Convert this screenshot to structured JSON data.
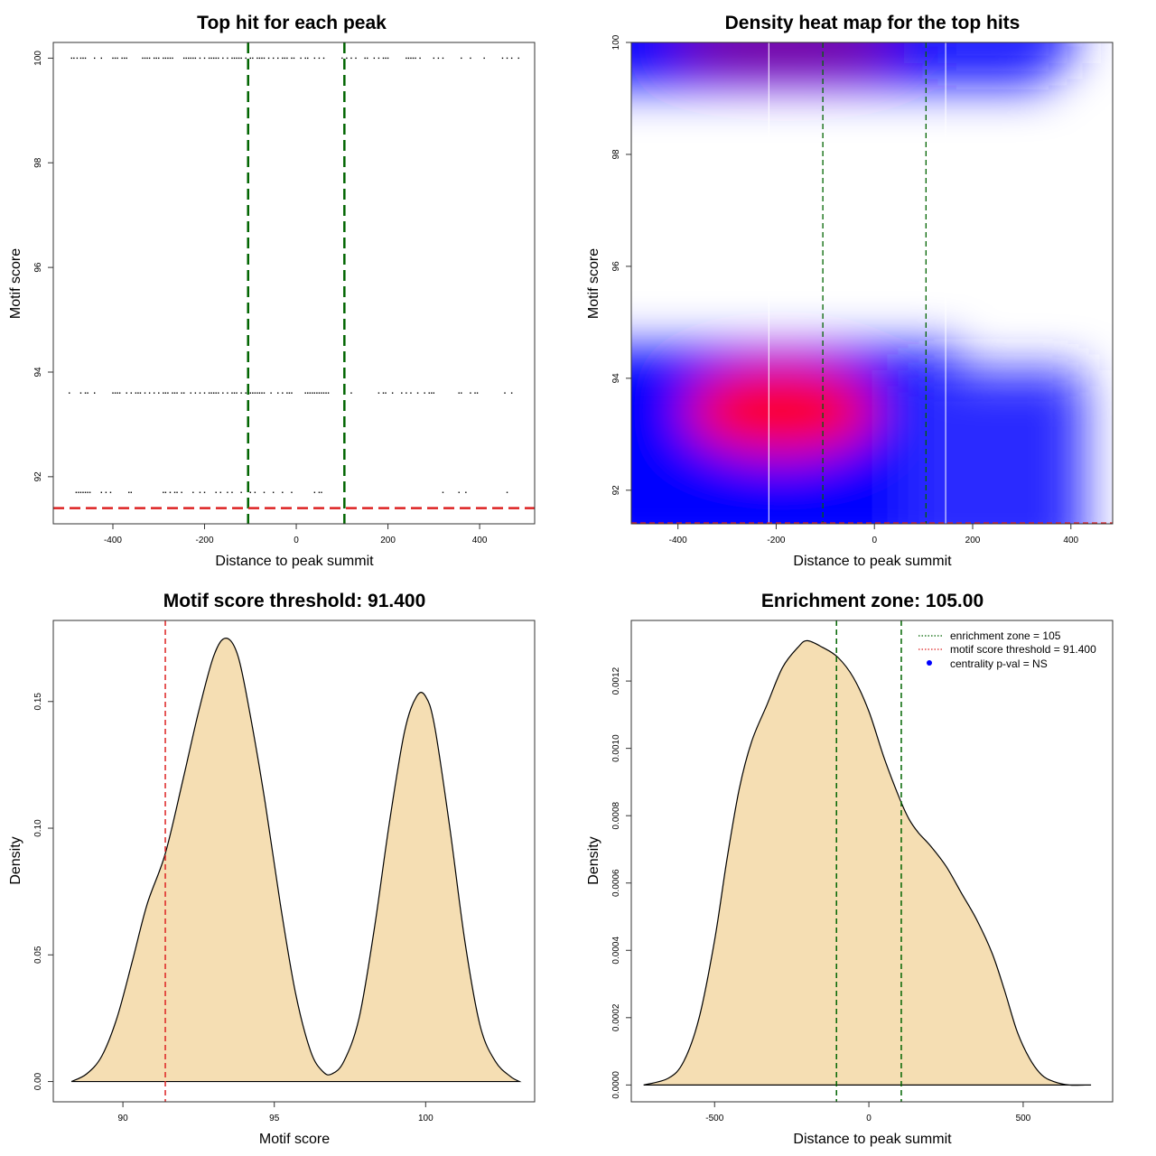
{
  "colors": {
    "threshold": "#dd2222",
    "zone": "#006400",
    "fill": "#f5deb3",
    "hot": "#ff0000",
    "mid": "#0000ff",
    "cool": "#ffffff",
    "upper": "#800080"
  },
  "chart_data": [
    {
      "id": "scatter",
      "type": "scatter",
      "title": "Top hit for each peak",
      "xlabel": "Distance to peak summit",
      "ylabel": "Motif score",
      "xlim": [
        -530,
        520
      ],
      "ylim": [
        91.1,
        100.3
      ],
      "xticks": [
        "-400",
        "-200",
        "0",
        "200",
        "400"
      ],
      "xtick_values": [
        -400,
        -200,
        0,
        200,
        400
      ],
      "yticks": [
        "92",
        "94",
        "96",
        "98",
        "100"
      ],
      "ytick_values": [
        92,
        94,
        96,
        98,
        100
      ],
      "threshold": 91.4,
      "zone": [
        -105,
        105
      ],
      "points": {
        "y100": [
          -490,
          -485,
          -478,
          -470,
          -465,
          -460,
          -440,
          -425,
          -400,
          -395,
          -390,
          -380,
          -375,
          -370,
          -335,
          -330,
          -325,
          -320,
          -310,
          -305,
          -300,
          -290,
          -285,
          -280,
          -275,
          -270,
          -245,
          -240,
          -235,
          -230,
          -225,
          -220,
          -210,
          -200,
          -190,
          -185,
          -180,
          -175,
          -170,
          -160,
          -150,
          -140,
          -135,
          -130,
          -125,
          -120,
          -110,
          -100,
          -95,
          -85,
          -80,
          -75,
          -70,
          -60,
          -50,
          -40,
          -30,
          -25,
          -20,
          -10,
          -5,
          10,
          20,
          25,
          40,
          50,
          60,
          100,
          110,
          120,
          130,
          150,
          155,
          170,
          180,
          190,
          195,
          200,
          240,
          245,
          250,
          255,
          260,
          270,
          300,
          310,
          320,
          360,
          380,
          410,
          450,
          460,
          470,
          485
        ],
        "y93": [
          -495,
          -470,
          -460,
          -455,
          -440,
          -400,
          -395,
          -390,
          -385,
          -370,
          -360,
          -350,
          -345,
          -340,
          -330,
          -320,
          -310,
          -300,
          -290,
          -285,
          -280,
          -270,
          -265,
          -260,
          -250,
          -245,
          -230,
          -220,
          -210,
          -200,
          -190,
          -185,
          -180,
          -175,
          -170,
          -160,
          -150,
          -140,
          -135,
          -130,
          -120,
          -110,
          -100,
          -95,
          -90,
          -85,
          -80,
          -75,
          -70,
          -55,
          -40,
          -30,
          -20,
          -15,
          -10,
          20,
          25,
          30,
          35,
          40,
          45,
          50,
          55,
          60,
          65,
          70,
          120,
          180,
          190,
          195,
          210,
          230,
          240,
          250,
          265,
          280,
          290,
          295,
          300,
          355,
          360,
          380,
          390,
          395,
          455,
          470
        ],
        "y91_7": [
          -480,
          -475,
          -470,
          -465,
          -460,
          -455,
          -450,
          -425,
          -415,
          -405,
          -365,
          -360,
          -290,
          -285,
          -275,
          -265,
          -260,
          -250,
          -225,
          -210,
          -200,
          -175,
          -165,
          -150,
          -140,
          -120,
          -100,
          -90,
          -70,
          -50,
          -30,
          -10,
          40,
          50,
          55,
          320,
          355,
          370,
          460
        ]
      }
    },
    {
      "id": "heatmap",
      "type": "heatmap",
      "title": "Density heat map for the top hits",
      "xlabel": "Distance to peak summit",
      "ylabel": "Motif score",
      "xlim": [
        -495,
        485
      ],
      "ylim": [
        91.4,
        100.0
      ],
      "xticks": [
        "-400",
        "-200",
        "0",
        "200",
        "400"
      ],
      "xtick_values": [
        -400,
        -200,
        0,
        200,
        400
      ],
      "yticks": [
        "92",
        "94",
        "96",
        "98",
        "100"
      ],
      "ytick_values": [
        92,
        94,
        96,
        98,
        100
      ],
      "zone": [
        -105,
        105
      ],
      "white_lines": [
        -215,
        145
      ],
      "threshold": 91.4
    },
    {
      "id": "score-density",
      "type": "area",
      "title": "Motif score threshold: 91.400",
      "xlabel": "Motif score",
      "ylabel": "Density",
      "xlim": [
        87.7,
        103.6
      ],
      "ylim": [
        -0.008,
        0.182
      ],
      "xticks": [
        "90",
        "95",
        "100"
      ],
      "xtick_values": [
        90,
        95,
        100
      ],
      "yticks": [
        "0.00",
        "0.05",
        "0.10",
        "0.15"
      ],
      "ytick_values": [
        0.0,
        0.05,
        0.1,
        0.15
      ],
      "threshold": 91.4,
      "x": [
        88.3,
        88.8,
        89.3,
        89.8,
        90.3,
        90.8,
        91.4,
        92.0,
        92.5,
        93.0,
        93.4,
        93.8,
        94.2,
        94.7,
        95.2,
        95.7,
        96.2,
        96.6,
        96.9,
        97.3,
        97.8,
        98.3,
        98.8,
        99.3,
        99.7,
        100.0,
        100.3,
        100.8,
        101.3,
        101.8,
        102.3,
        102.8,
        103.1
      ],
      "y": [
        0.0,
        0.003,
        0.01,
        0.025,
        0.047,
        0.07,
        0.09,
        0.12,
        0.146,
        0.168,
        0.175,
        0.168,
        0.145,
        0.11,
        0.07,
        0.035,
        0.012,
        0.004,
        0.003,
        0.008,
        0.025,
        0.06,
        0.102,
        0.138,
        0.152,
        0.152,
        0.14,
        0.1,
        0.055,
        0.022,
        0.008,
        0.002,
        0.0
      ]
    },
    {
      "id": "distance-density",
      "type": "area",
      "title": "Enrichment zone: 105.00",
      "xlabel": "Distance to peak summit",
      "ylabel": "Density",
      "xlim": [
        -770,
        790
      ],
      "ylim": [
        -5e-05,
        0.00138
      ],
      "xticks": [
        "-500",
        "0",
        "500"
      ],
      "xtick_values": [
        -500,
        0,
        500
      ],
      "yticks": [
        "0.0000",
        "0.0002",
        "0.0004",
        "0.0006",
        "0.0008",
        "0.0010",
        "0.0012"
      ],
      "ytick_values": [
        0,
        0.0002,
        0.0004,
        0.0006,
        0.0008,
        0.001,
        0.0012
      ],
      "zone": [
        -105,
        105
      ],
      "x": [
        -730,
        -650,
        -600,
        -550,
        -500,
        -460,
        -420,
        -380,
        -330,
        -280,
        -230,
        -200,
        -150,
        -100,
        -50,
        0,
        50,
        100,
        130,
        160,
        200,
        250,
        300,
        350,
        400,
        440,
        480,
        520,
        560,
        600,
        650,
        700,
        720
      ],
      "y": [
        0.0,
        2e-05,
        7e-05,
        0.0002,
        0.00043,
        0.00067,
        0.00088,
        0.00102,
        0.00113,
        0.00124,
        0.0013,
        0.00132,
        0.0013,
        0.00127,
        0.00121,
        0.00111,
        0.00097,
        0.00085,
        0.00079,
        0.00075,
        0.00071,
        0.00065,
        0.00057,
        0.00049,
        0.00039,
        0.00028,
        0.00016,
        8e-05,
        3e-05,
        1e-05,
        0.0,
        0.0,
        0.0
      ],
      "legend": [
        {
          "label": "enrichment zone = 105",
          "color": "#006400",
          "style": "dotted"
        },
        {
          "label": "motif score threshold = 91.400",
          "color": "#dd2222",
          "style": "dotted"
        },
        {
          "label": "centrality p-val = NS",
          "color": "#0000ff",
          "style": "dot"
        }
      ]
    }
  ]
}
